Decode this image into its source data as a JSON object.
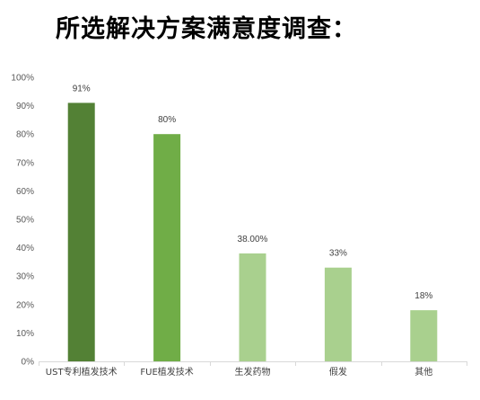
{
  "chart_data": {
    "type": "bar",
    "title": "所选解决方案满意度调查：",
    "categories": [
      "UST专利植发技术",
      "FUE植发技术",
      "生发药物",
      "假发",
      "其他"
    ],
    "values": [
      91,
      80,
      38,
      33,
      18
    ],
    "data_labels": [
      "91%",
      "80%",
      "38.00%",
      "33%",
      "18%"
    ],
    "bar_colors": [
      "#538135",
      "#70AD47",
      "#A9D08E",
      "#A9D08E",
      "#A9D08E"
    ],
    "ylim": [
      0,
      100
    ],
    "yticks": [
      "0%",
      "10%",
      "20%",
      "30%",
      "40%",
      "50%",
      "60%",
      "70%",
      "80%",
      "90%",
      "100%"
    ],
    "xlabel": "",
    "ylabel": "",
    "grid": false,
    "legend": "none"
  }
}
